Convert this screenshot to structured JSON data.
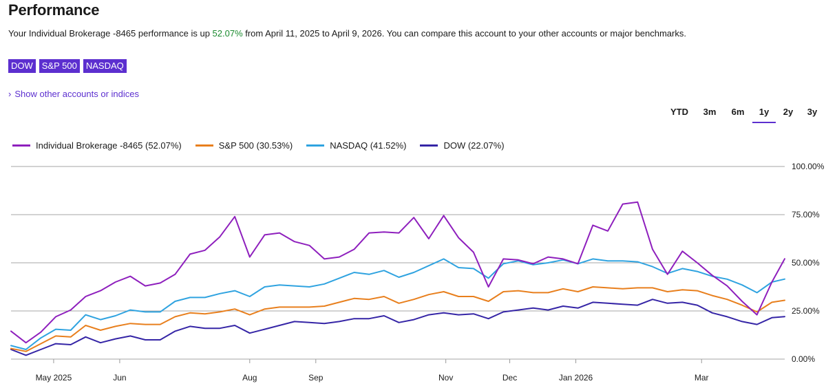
{
  "page": {
    "title": "Performance",
    "summary_prefix": "Your Individual Brokerage -8465 performance is up ",
    "summary_pct": "52.07%",
    "summary_suffix": " from April 11, 2025 to April 9, 2026. You can compare this account to your other accounts or major benchmarks.",
    "chips": [
      "DOW",
      "S&P 500",
      "NASDAQ"
    ],
    "show_other_chevron": "›",
    "show_other": "Show other accounts or indices",
    "ranges": [
      "YTD",
      "3m",
      "6m",
      "1y",
      "2y",
      "3y"
    ],
    "active_range": "1y"
  },
  "colors": {
    "accent": "#5c2fcf",
    "positive": "#1a8a2e",
    "grid": "#a6a6a6",
    "axis": "#999999"
  },
  "chart_data": {
    "type": "line",
    "x_start": "2025-04-11",
    "x_end": "2026-04-09",
    "x_ticks": [
      {
        "label": "May 2025",
        "date": "2025-05-01"
      },
      {
        "label": "Jun",
        "date": "2025-06-01"
      },
      {
        "label": "Aug",
        "date": "2025-08-01"
      },
      {
        "label": "Sep",
        "date": "2025-09-01"
      },
      {
        "label": "Nov",
        "date": "2025-11-01"
      },
      {
        "label": "Dec",
        "date": "2025-12-01"
      },
      {
        "label": "Jan 2026",
        "date": "2026-01-01"
      },
      {
        "label": "Mar",
        "date": "2026-03-01"
      }
    ],
    "y_ticks": [
      "0.00%",
      "25.00%",
      "50.00%",
      "75.00%",
      "100.00%"
    ],
    "y_tick_values": [
      0,
      25,
      50,
      75,
      100
    ],
    "ylim": [
      0,
      100
    ],
    "grid": true,
    "legend_position": "top-left",
    "series": [
      {
        "name": "Individual Brokerage -8465",
        "legend": "Individual Brokerage -8465 (52.07%)",
        "color": "#8e1fbd",
        "points": [
          [
            "2025-04-11",
            14.5
          ],
          [
            "2025-04-18",
            8.5
          ],
          [
            "2025-04-25",
            14.0
          ],
          [
            "2025-05-02",
            22.0
          ],
          [
            "2025-05-09",
            25.5
          ],
          [
            "2025-05-16",
            32.5
          ],
          [
            "2025-05-23",
            35.5
          ],
          [
            "2025-05-30",
            40.0
          ],
          [
            "2025-06-06",
            43.0
          ],
          [
            "2025-06-13",
            38.0
          ],
          [
            "2025-06-20",
            39.5
          ],
          [
            "2025-06-27",
            44.0
          ],
          [
            "2025-07-04",
            54.5
          ],
          [
            "2025-07-11",
            56.5
          ],
          [
            "2025-07-18",
            63.5
          ],
          [
            "2025-07-25",
            74.0
          ],
          [
            "2025-08-01",
            53.0
          ],
          [
            "2025-08-08",
            64.5
          ],
          [
            "2025-08-15",
            65.5
          ],
          [
            "2025-08-22",
            61.0
          ],
          [
            "2025-08-29",
            59.0
          ],
          [
            "2025-09-05",
            52.0
          ],
          [
            "2025-09-12",
            53.0
          ],
          [
            "2025-09-19",
            57.0
          ],
          [
            "2025-09-26",
            65.5
          ],
          [
            "2025-10-03",
            66.0
          ],
          [
            "2025-10-10",
            65.5
          ],
          [
            "2025-10-17",
            73.5
          ],
          [
            "2025-10-24",
            62.5
          ],
          [
            "2025-10-31",
            74.5
          ],
          [
            "2025-11-07",
            63.0
          ],
          [
            "2025-11-14",
            55.5
          ],
          [
            "2025-11-21",
            37.5
          ],
          [
            "2025-11-28",
            52.0
          ],
          [
            "2025-12-05",
            51.5
          ],
          [
            "2025-12-12",
            49.5
          ],
          [
            "2025-12-19",
            53.0
          ],
          [
            "2025-12-26",
            52.0
          ],
          [
            "2026-01-02",
            49.5
          ],
          [
            "2026-01-09",
            69.5
          ],
          [
            "2026-01-16",
            66.5
          ],
          [
            "2026-01-23",
            80.5
          ],
          [
            "2026-01-30",
            81.5
          ],
          [
            "2026-02-06",
            57.0
          ],
          [
            "2026-02-13",
            44.0
          ],
          [
            "2026-02-20",
            56.0
          ],
          [
            "2026-02-27",
            50.0
          ],
          [
            "2026-03-06",
            43.5
          ],
          [
            "2026-03-13",
            38.0
          ],
          [
            "2026-03-20",
            30.0
          ],
          [
            "2026-03-27",
            23.0
          ],
          [
            "2026-04-03",
            40.0
          ],
          [
            "2026-04-09",
            52.07
          ]
        ]
      },
      {
        "name": "S&P 500",
        "legend": "S&P 500 (30.53%)",
        "color": "#e87f1d",
        "points": [
          [
            "2025-04-11",
            5.5
          ],
          [
            "2025-04-18",
            4.0
          ],
          [
            "2025-04-25",
            8.0
          ],
          [
            "2025-05-02",
            12.0
          ],
          [
            "2025-05-09",
            11.5
          ],
          [
            "2025-05-16",
            17.5
          ],
          [
            "2025-05-23",
            15.0
          ],
          [
            "2025-05-30",
            17.0
          ],
          [
            "2025-06-06",
            18.5
          ],
          [
            "2025-06-13",
            18.0
          ],
          [
            "2025-06-20",
            18.0
          ],
          [
            "2025-06-27",
            22.0
          ],
          [
            "2025-07-04",
            24.0
          ],
          [
            "2025-07-11",
            23.5
          ],
          [
            "2025-07-18",
            24.5
          ],
          [
            "2025-07-25",
            26.0
          ],
          [
            "2025-08-01",
            23.0
          ],
          [
            "2025-08-08",
            26.0
          ],
          [
            "2025-08-15",
            27.0
          ],
          [
            "2025-08-22",
            27.0
          ],
          [
            "2025-08-29",
            27.0
          ],
          [
            "2025-09-05",
            27.5
          ],
          [
            "2025-09-12",
            29.5
          ],
          [
            "2025-09-19",
            31.5
          ],
          [
            "2025-09-26",
            31.0
          ],
          [
            "2025-10-03",
            32.5
          ],
          [
            "2025-10-10",
            29.0
          ],
          [
            "2025-10-17",
            31.0
          ],
          [
            "2025-10-24",
            33.5
          ],
          [
            "2025-10-31",
            35.0
          ],
          [
            "2025-11-07",
            32.5
          ],
          [
            "2025-11-14",
            32.5
          ],
          [
            "2025-11-21",
            30.0
          ],
          [
            "2025-11-28",
            35.0
          ],
          [
            "2025-12-05",
            35.5
          ],
          [
            "2025-12-12",
            34.5
          ],
          [
            "2025-12-19",
            34.5
          ],
          [
            "2025-12-26",
            36.5
          ],
          [
            "2026-01-02",
            35.0
          ],
          [
            "2026-01-09",
            37.5
          ],
          [
            "2026-01-16",
            37.0
          ],
          [
            "2026-01-23",
            36.5
          ],
          [
            "2026-01-30",
            37.0
          ],
          [
            "2026-02-06",
            37.0
          ],
          [
            "2026-02-13",
            35.0
          ],
          [
            "2026-02-20",
            36.0
          ],
          [
            "2026-02-27",
            35.5
          ],
          [
            "2026-03-06",
            33.0
          ],
          [
            "2026-03-13",
            31.0
          ],
          [
            "2026-03-20",
            28.0
          ],
          [
            "2026-03-27",
            24.5
          ],
          [
            "2026-04-03",
            29.5
          ],
          [
            "2026-04-09",
            30.53
          ]
        ]
      },
      {
        "name": "NASDAQ",
        "legend": "NASDAQ (41.52%)",
        "color": "#2fa3e0",
        "points": [
          [
            "2025-04-11",
            7.0
          ],
          [
            "2025-04-18",
            5.0
          ],
          [
            "2025-04-25",
            11.0
          ],
          [
            "2025-05-02",
            15.5
          ],
          [
            "2025-05-09",
            15.0
          ],
          [
            "2025-05-16",
            23.0
          ],
          [
            "2025-05-23",
            20.5
          ],
          [
            "2025-05-30",
            22.5
          ],
          [
            "2025-06-06",
            25.5
          ],
          [
            "2025-06-13",
            24.5
          ],
          [
            "2025-06-20",
            24.5
          ],
          [
            "2025-06-27",
            30.0
          ],
          [
            "2025-07-04",
            32.0
          ],
          [
            "2025-07-11",
            32.0
          ],
          [
            "2025-07-18",
            34.0
          ],
          [
            "2025-07-25",
            35.5
          ],
          [
            "2025-08-01",
            32.5
          ],
          [
            "2025-08-08",
            37.5
          ],
          [
            "2025-08-15",
            38.5
          ],
          [
            "2025-08-22",
            38.0
          ],
          [
            "2025-08-29",
            37.5
          ],
          [
            "2025-09-05",
            39.0
          ],
          [
            "2025-09-12",
            42.0
          ],
          [
            "2025-09-19",
            45.0
          ],
          [
            "2025-09-26",
            44.0
          ],
          [
            "2025-10-03",
            46.0
          ],
          [
            "2025-10-10",
            42.5
          ],
          [
            "2025-10-17",
            45.0
          ],
          [
            "2025-10-24",
            48.5
          ],
          [
            "2025-10-31",
            52.0
          ],
          [
            "2025-11-07",
            47.5
          ],
          [
            "2025-11-14",
            47.0
          ],
          [
            "2025-11-21",
            42.0
          ],
          [
            "2025-11-28",
            49.5
          ],
          [
            "2025-12-05",
            51.0
          ],
          [
            "2025-12-12",
            49.0
          ],
          [
            "2025-12-19",
            50.0
          ],
          [
            "2025-12-26",
            51.5
          ],
          [
            "2026-01-02",
            49.5
          ],
          [
            "2026-01-09",
            52.0
          ],
          [
            "2026-01-16",
            51.0
          ],
          [
            "2026-01-23",
            51.0
          ],
          [
            "2026-01-30",
            50.5
          ],
          [
            "2026-02-06",
            48.0
          ],
          [
            "2026-02-13",
            44.5
          ],
          [
            "2026-02-20",
            47.0
          ],
          [
            "2026-02-27",
            45.5
          ],
          [
            "2026-03-06",
            43.0
          ],
          [
            "2026-03-13",
            41.5
          ],
          [
            "2026-03-20",
            38.5
          ],
          [
            "2026-03-27",
            34.5
          ],
          [
            "2026-04-03",
            40.0
          ],
          [
            "2026-04-09",
            41.52
          ]
        ]
      },
      {
        "name": "DOW",
        "legend": "DOW (22.07%)",
        "color": "#3525a6",
        "points": [
          [
            "2025-04-11",
            5.0
          ],
          [
            "2025-04-18",
            2.0
          ],
          [
            "2025-04-25",
            5.0
          ],
          [
            "2025-05-02",
            8.0
          ],
          [
            "2025-05-09",
            7.5
          ],
          [
            "2025-05-16",
            11.5
          ],
          [
            "2025-05-23",
            8.5
          ],
          [
            "2025-05-30",
            10.5
          ],
          [
            "2025-06-06",
            12.0
          ],
          [
            "2025-06-13",
            10.0
          ],
          [
            "2025-06-20",
            10.0
          ],
          [
            "2025-06-27",
            14.5
          ],
          [
            "2025-07-04",
            17.0
          ],
          [
            "2025-07-11",
            16.0
          ],
          [
            "2025-07-18",
            16.0
          ],
          [
            "2025-07-25",
            17.5
          ],
          [
            "2025-08-01",
            13.5
          ],
          [
            "2025-08-08",
            15.5
          ],
          [
            "2025-08-15",
            17.5
          ],
          [
            "2025-08-22",
            19.5
          ],
          [
            "2025-08-29",
            19.0
          ],
          [
            "2025-09-05",
            18.5
          ],
          [
            "2025-09-12",
            19.5
          ],
          [
            "2025-09-19",
            21.0
          ],
          [
            "2025-09-26",
            21.0
          ],
          [
            "2025-10-03",
            22.5
          ],
          [
            "2025-10-10",
            19.0
          ],
          [
            "2025-10-17",
            20.5
          ],
          [
            "2025-10-24",
            23.0
          ],
          [
            "2025-10-31",
            24.0
          ],
          [
            "2025-11-07",
            23.0
          ],
          [
            "2025-11-14",
            23.5
          ],
          [
            "2025-11-21",
            21.0
          ],
          [
            "2025-11-28",
            24.5
          ],
          [
            "2025-12-05",
            25.5
          ],
          [
            "2025-12-12",
            26.5
          ],
          [
            "2025-12-19",
            25.5
          ],
          [
            "2025-12-26",
            27.5
          ],
          [
            "2026-01-02",
            26.5
          ],
          [
            "2026-01-09",
            29.5
          ],
          [
            "2026-01-16",
            29.0
          ],
          [
            "2026-01-23",
            28.5
          ],
          [
            "2026-01-30",
            28.0
          ],
          [
            "2026-02-06",
            31.0
          ],
          [
            "2026-02-13",
            29.0
          ],
          [
            "2026-02-20",
            29.5
          ],
          [
            "2026-02-27",
            28.0
          ],
          [
            "2026-03-06",
            24.0
          ],
          [
            "2026-03-13",
            22.0
          ],
          [
            "2026-03-20",
            19.5
          ],
          [
            "2026-03-27",
            18.0
          ],
          [
            "2026-04-03",
            21.5
          ],
          [
            "2026-04-09",
            22.07
          ]
        ]
      }
    ]
  }
}
